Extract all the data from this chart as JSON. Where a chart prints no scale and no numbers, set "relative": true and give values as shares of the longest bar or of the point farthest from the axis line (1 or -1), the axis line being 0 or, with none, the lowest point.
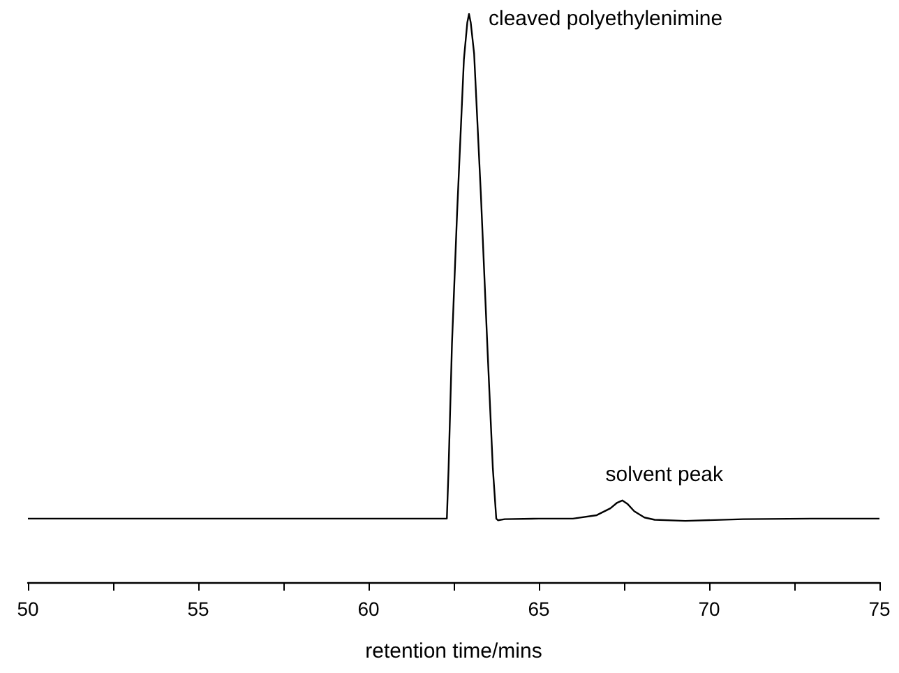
{
  "chart_data": {
    "type": "line",
    "relative": true,
    "xlabel": "retention time/mins",
    "xlim": [
      50,
      75
    ],
    "xticks": [
      50,
      {
        "value": 52.5,
        "label": null
      },
      55,
      {
        "value": 57.5,
        "label": null
      },
      60,
      {
        "value": 62.5,
        "label": null
      },
      65,
      {
        "value": 67.5,
        "label": null
      },
      70,
      {
        "value": 72.5,
        "label": null
      },
      75
    ],
    "grid": false,
    "marker": "none",
    "line_style": "solid",
    "annotations": [
      {
        "text": "cleaved polyethylenimine",
        "x": 62.95,
        "y": 1
      },
      {
        "text": "solvent peak",
        "x": 67.45,
        "y": 0.144
      }
    ],
    "series": [
      {
        "color": "#000000",
        "x": [
          50,
          55,
          60,
          62.3,
          62.35,
          62.45,
          62.6,
          62.8,
          62.9,
          62.95,
          63.0,
          63.1,
          63.3,
          63.5,
          63.65,
          63.75,
          63.8,
          64,
          65,
          66,
          66.7,
          67.1,
          67.3,
          67.45,
          67.6,
          67.8,
          68.1,
          68.4,
          69.3,
          71,
          73,
          75
        ],
        "values": [
          0.112,
          0.112,
          0.112,
          0.112,
          0.2,
          0.42,
          0.65,
          0.92,
          0.985,
          1,
          0.985,
          0.93,
          0.68,
          0.4,
          0.2,
          0.112,
          0.109,
          0.111,
          0.112,
          0.112,
          0.118,
          0.13,
          0.14,
          0.144,
          0.138,
          0.125,
          0.114,
          0.11,
          0.108,
          0.111,
          0.112,
          0.112
        ]
      }
    ]
  }
}
